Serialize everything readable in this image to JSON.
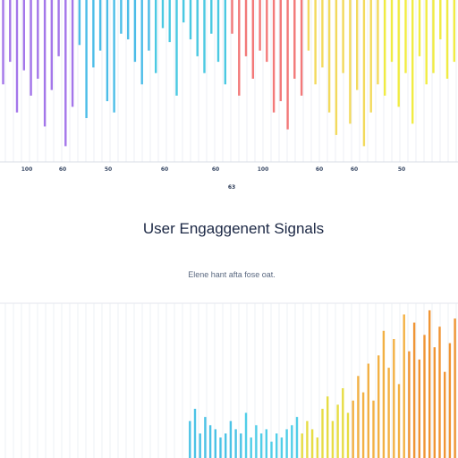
{
  "chart_data": {
    "type": "bar",
    "title": "User Engaggenent Signals",
    "subtitle": "Elene hant afta fose oat.",
    "center_label": "63",
    "tick_labels": [
      "100",
      "60",
      "50",
      "60",
      "60",
      "100",
      "60",
      "60",
      "50"
    ],
    "xlabel": "",
    "ylabel": "",
    "grid": true,
    "legend": "none",
    "top_series": {
      "name": "",
      "colors": [
        "#9a67e8",
        "#39b6e6",
        "#36c3df",
        "#f26a6a",
        "#f2d64b",
        "#f0ea2f"
      ],
      "values": [
        30,
        22,
        40,
        25,
        34,
        28,
        45,
        32,
        20,
        52,
        38,
        16,
        42,
        24,
        18,
        36,
        40,
        12,
        14,
        22,
        30,
        18,
        26,
        10,
        15,
        34,
        8,
        14,
        20,
        26,
        12,
        22,
        30,
        12,
        34,
        20,
        28,
        18,
        22,
        40,
        36,
        46,
        28,
        34,
        18,
        30,
        24,
        40,
        48,
        26,
        44,
        32,
        52,
        40,
        30,
        34,
        22,
        38,
        26,
        44,
        20,
        30,
        26,
        14,
        28,
        22
      ]
    },
    "bottom_series": {
      "name": "",
      "colors": [
        "#37bce3",
        "#3ec9e6",
        "#e4d930",
        "#f2a830",
        "#ee8a1f"
      ],
      "values": [
        18,
        24,
        12,
        20,
        16,
        14,
        10,
        12,
        18,
        14,
        12,
        22,
        10,
        16,
        12,
        14,
        8,
        12,
        10,
        14,
        16,
        20,
        12,
        18,
        14,
        10,
        24,
        30,
        18,
        26,
        34,
        22,
        28,
        40,
        32,
        46,
        28,
        50,
        62,
        44,
        58,
        36,
        70,
        52,
        66,
        48,
        60,
        72,
        54,
        64,
        42,
        56,
        68
      ]
    }
  }
}
